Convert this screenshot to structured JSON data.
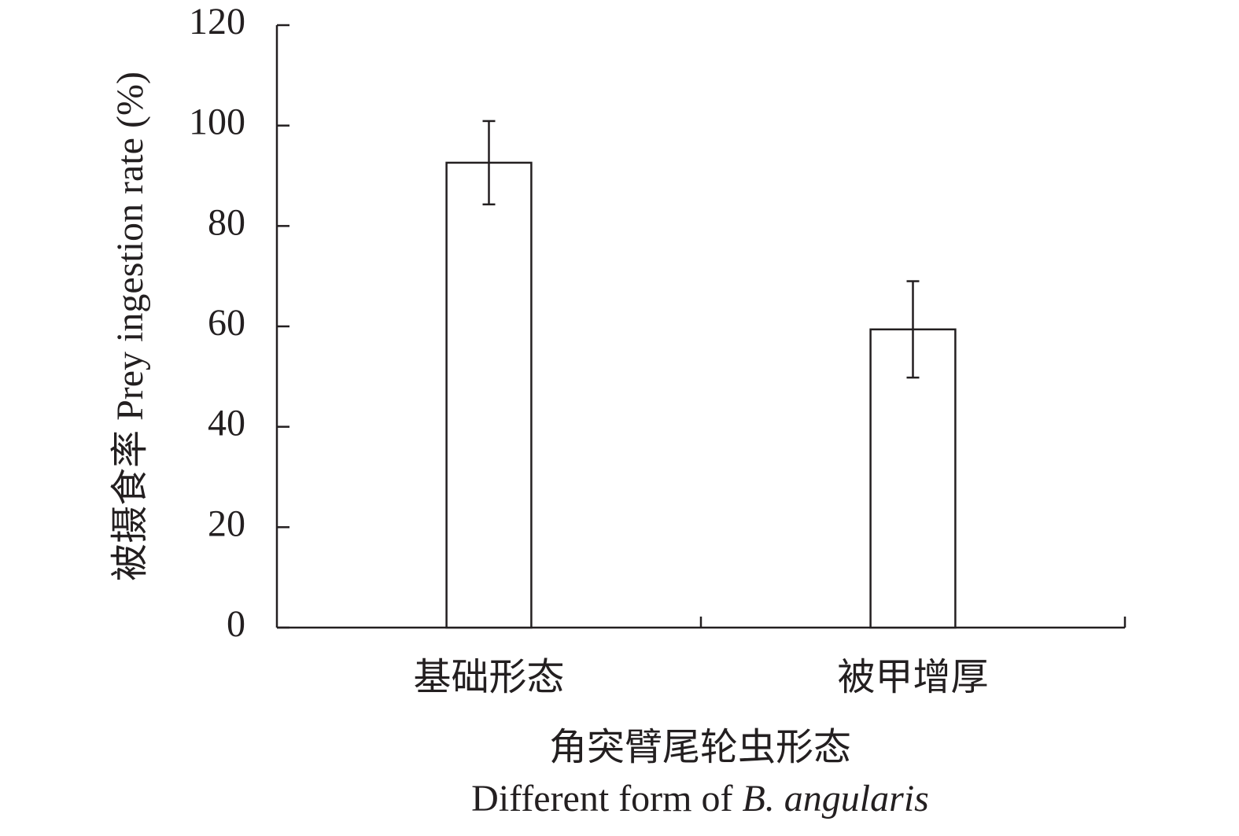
{
  "chart_data": {
    "type": "bar",
    "y_label": "被摄食率 Prey ingestion rate (%)",
    "x_label": [
      "角突臂尾轮虫形态",
      "Different form of",
      "B. angularis"
    ],
    "categories": [
      "基础形态",
      "被甲增厚"
    ],
    "values": [
      92.6,
      59.4
    ],
    "errors": [
      8.3,
      9.6
    ],
    "color": "#ffffff",
    "edge_color": "#231f20",
    "ylim": [
      0,
      120
    ],
    "yticks": [
      0,
      20,
      40,
      60,
      80,
      100,
      120
    ],
    "grid": false
  }
}
